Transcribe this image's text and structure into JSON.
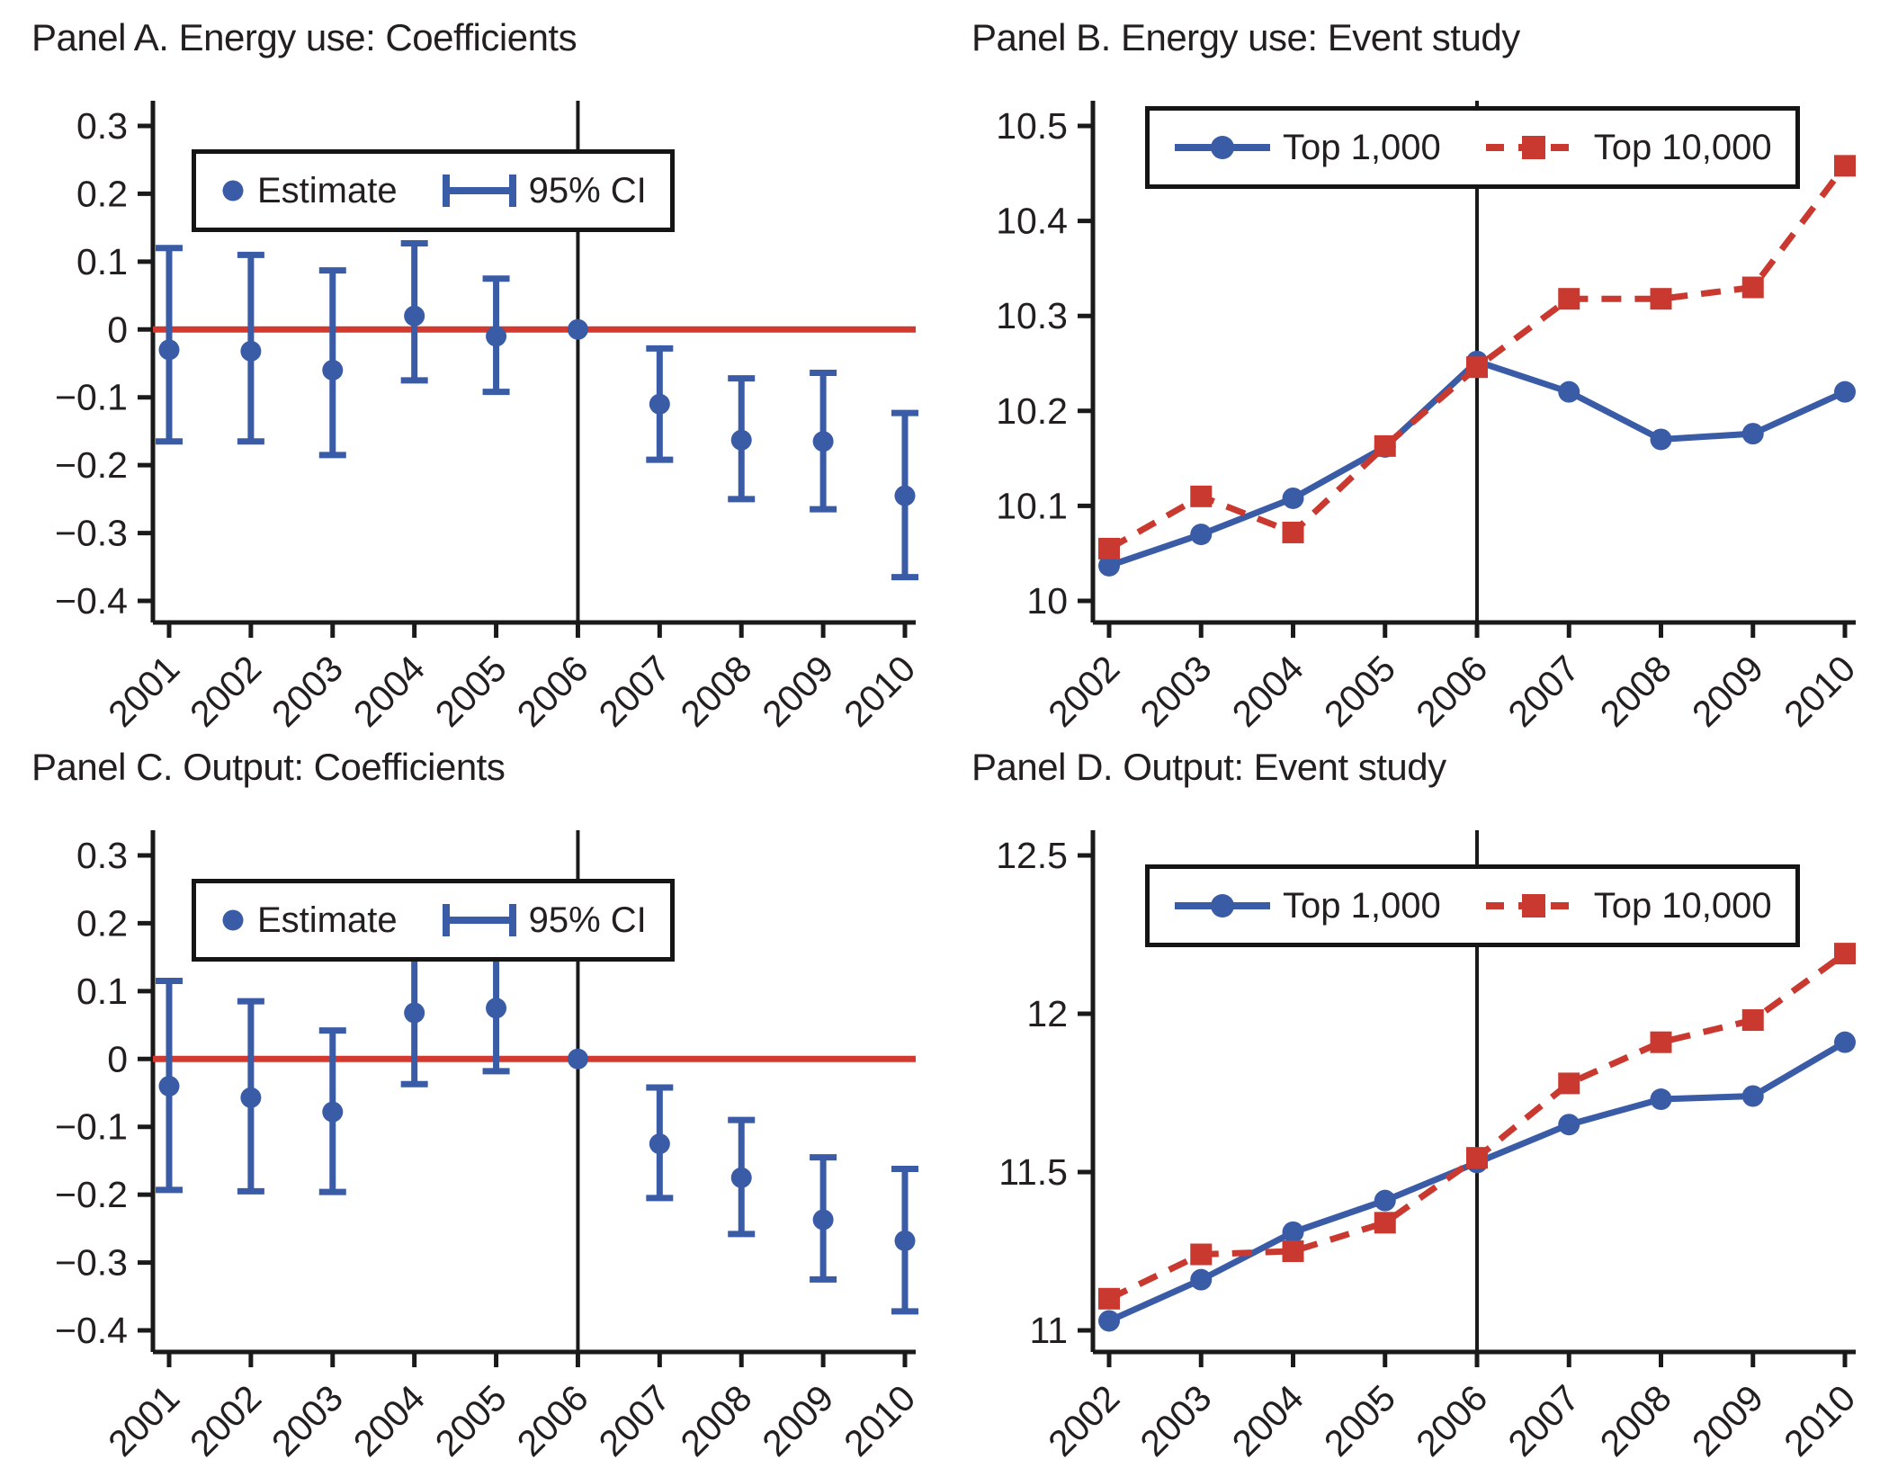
{
  "colors": {
    "series_blue": "#3a5ba6",
    "series_red": "#c9392f",
    "ref_line": "#d23a30",
    "axis": "#1a1a1a",
    "text": "#231f20"
  },
  "chart_data": [
    {
      "panel": "A",
      "type": "scatter",
      "subtype": "coefficient-errorbar",
      "title": "Panel A. Energy use: Coefficients",
      "categories": [
        "2001",
        "2002",
        "2003",
        "2004",
        "2005",
        "2006",
        "2007",
        "2008",
        "2009",
        "2010"
      ],
      "event_line_x": "2006",
      "ref_line_y": 0,
      "grid": false,
      "legend_position": "top-left",
      "ylim": [
        -0.4,
        0.3
      ],
      "yticks": [
        0.3,
        0.2,
        0.1,
        0,
        -0.1,
        -0.2,
        -0.3,
        -0.4
      ],
      "ytick_labels": [
        "0.3",
        "0.2",
        "0.1",
        "0",
        "−0.1",
        "−0.2",
        "−0.3",
        "−0.4"
      ],
      "ci_label": "95% CI",
      "series": [
        {
          "name": "Estimate",
          "marker": "circle",
          "color": "series_blue",
          "values": [
            -0.03,
            -0.032,
            -0.06,
            0.02,
            -0.01,
            0,
            -0.11,
            -0.163,
            -0.165,
            -0.245
          ]
        }
      ],
      "ci_low": [
        -0.165,
        -0.165,
        -0.185,
        -0.075,
        -0.092,
        null,
        -0.192,
        -0.25,
        -0.265,
        -0.365
      ],
      "ci_high": [
        0.12,
        0.11,
        0.087,
        0.127,
        0.075,
        null,
        -0.028,
        -0.072,
        -0.064,
        -0.123
      ]
    },
    {
      "panel": "B",
      "type": "line",
      "title": "Panel B. Energy use: Event study",
      "categories": [
        "2002",
        "2003",
        "2004",
        "2005",
        "2006",
        "2007",
        "2008",
        "2009",
        "2010"
      ],
      "event_line_x": "2006",
      "grid": false,
      "legend_position": "top-left",
      "ylim": [
        10,
        10.5
      ],
      "yticks": [
        10.5,
        10.4,
        10.3,
        10.2,
        10.1,
        10
      ],
      "ytick_labels": [
        "10.5",
        "10.4",
        "10.3",
        "10.2",
        "10.1",
        "10"
      ],
      "series": [
        {
          "name": "Top 1,000",
          "marker": "circle",
          "dash": false,
          "color": "series_blue",
          "values": [
            10.037,
            10.07,
            10.108,
            10.162,
            10.252,
            10.22,
            10.17,
            10.176,
            10.22
          ]
        },
        {
          "name": "Top 10,000",
          "marker": "square",
          "dash": true,
          "color": "series_red",
          "values": [
            10.055,
            10.11,
            10.072,
            10.163,
            10.246,
            10.318,
            10.318,
            10.33,
            10.458
          ]
        }
      ]
    },
    {
      "panel": "C",
      "type": "scatter",
      "subtype": "coefficient-errorbar",
      "title": "Panel C. Output: Coefficients",
      "categories": [
        "2001",
        "2002",
        "2003",
        "2004",
        "2005",
        "2006",
        "2007",
        "2008",
        "2009",
        "2010"
      ],
      "event_line_x": "2006",
      "ref_line_y": 0,
      "grid": false,
      "legend_position": "top-left",
      "ylim": [
        -0.4,
        0.3
      ],
      "yticks": [
        0.3,
        0.2,
        0.1,
        0,
        -0.1,
        -0.2,
        -0.3,
        -0.4
      ],
      "ytick_labels": [
        "0.3",
        "0.2",
        "0.1",
        "0",
        "−0.1",
        "−0.2",
        "−0.3",
        "−0.4"
      ],
      "ci_label": "95% CI",
      "series": [
        {
          "name": "Estimate",
          "marker": "circle",
          "color": "series_blue",
          "values": [
            -0.04,
            -0.057,
            -0.078,
            0.068,
            0.075,
            0,
            -0.125,
            -0.175,
            -0.237,
            -0.268
          ]
        }
      ],
      "ci_low": [
        -0.193,
        -0.195,
        -0.196,
        -0.037,
        -0.018,
        null,
        -0.205,
        -0.258,
        -0.325,
        -0.372
      ],
      "ci_high": [
        0.115,
        0.085,
        0.042,
        0.172,
        0.17,
        null,
        -0.042,
        -0.09,
        -0.145,
        -0.162
      ]
    },
    {
      "panel": "D",
      "type": "line",
      "title": "Panel D. Output: Event study",
      "categories": [
        "2002",
        "2003",
        "2004",
        "2005",
        "2006",
        "2007",
        "2008",
        "2009",
        "2010"
      ],
      "event_line_x": "2006",
      "grid": false,
      "legend_position": "top-left",
      "ylim": [
        11,
        12.5
      ],
      "yticks": [
        12.5,
        12,
        11.5,
        11
      ],
      "ytick_labels": [
        "12.5",
        "12",
        "11.5",
        "11"
      ],
      "series": [
        {
          "name": "Top 1,000",
          "marker": "circle",
          "dash": false,
          "color": "series_blue",
          "values": [
            11.03,
            11.16,
            11.31,
            11.41,
            11.53,
            11.65,
            11.73,
            11.74,
            11.91
          ]
        },
        {
          "name": "Top 10,000",
          "marker": "square",
          "dash": true,
          "color": "series_red",
          "values": [
            11.1,
            11.24,
            11.25,
            11.34,
            11.545,
            11.78,
            11.91,
            11.98,
            12.19
          ]
        }
      ]
    }
  ]
}
